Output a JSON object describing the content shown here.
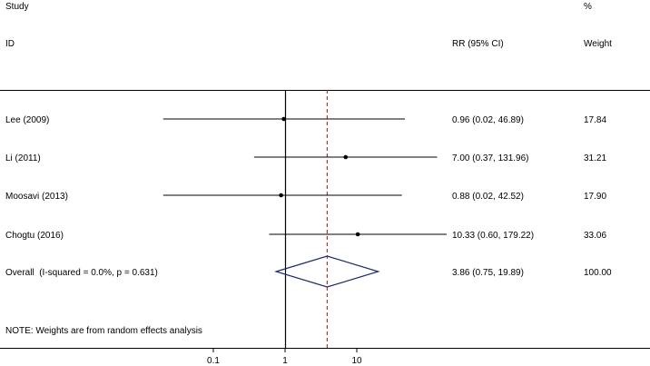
{
  "chart_data": {
    "type": "forest",
    "headers": {
      "study_top": "Study",
      "study_bottom": "ID",
      "effect": "RR (95% CI)",
      "weight_top": "%",
      "weight_bottom": "Weight"
    },
    "scale": "log",
    "x_ticks": [
      {
        "value": 0.1,
        "label": "0.1"
      },
      {
        "value": 1,
        "label": "1"
      },
      {
        "value": 10,
        "label": "10"
      }
    ],
    "null_line": 1,
    "overall_line": 3.86,
    "rows": [
      {
        "study": "Lee (2009)",
        "rr": 0.96,
        "lo": 0.02,
        "hi": 46.89,
        "ci_text": "0.96 (0.02, 46.89)",
        "weight": "17.84"
      },
      {
        "study": "Li (2011)",
        "rr": 7.0,
        "lo": 0.37,
        "hi": 131.96,
        "ci_text": "7.00 (0.37, 131.96)",
        "weight": "31.21"
      },
      {
        "study": "Moosavi (2013)",
        "rr": 0.88,
        "lo": 0.02,
        "hi": 42.52,
        "ci_text": "0.88 (0.02, 42.52)",
        "weight": "17.90"
      },
      {
        "study": "Chogtu (2016)",
        "rr": 10.33,
        "lo": 0.6,
        "hi": 179.22,
        "ci_text": "10.33 (0.60, 179.22)",
        "weight": "33.06"
      }
    ],
    "overall": {
      "label": "Overall  (I-squared = 0.0%, p = 0.631)",
      "rr": 3.86,
      "lo": 0.75,
      "hi": 19.89,
      "ci_text": "3.86 (0.75, 19.89)",
      "weight": "100.00"
    },
    "note": "NOTE: Weights are from random effects analysis",
    "colors": {
      "axis": "#000000",
      "ci": "#000000",
      "diamond": "#1f2a6b",
      "overall_line": "#8b1a1a"
    }
  }
}
